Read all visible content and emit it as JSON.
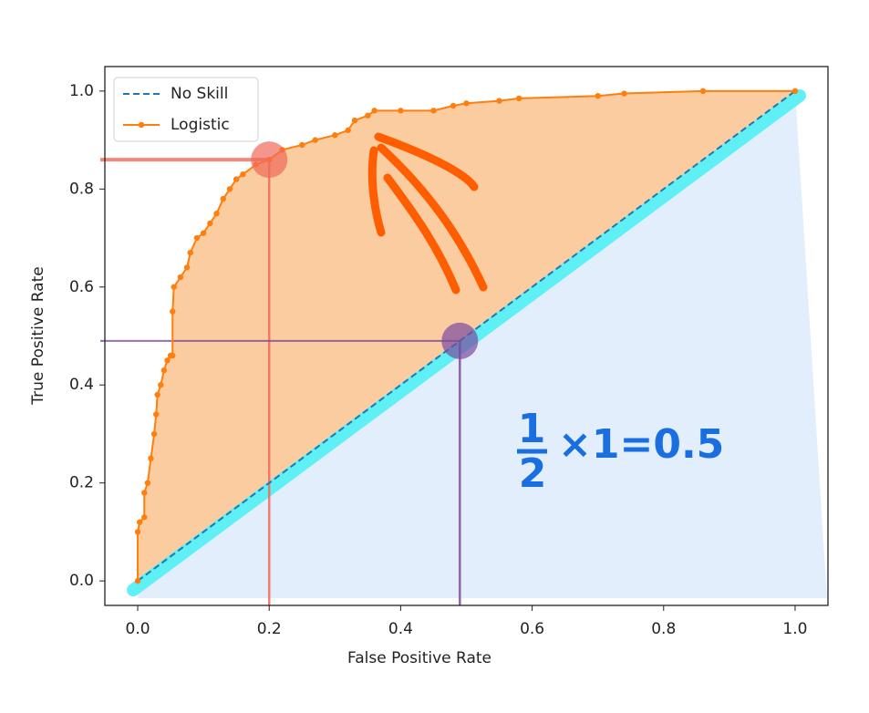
{
  "chart_data": {
    "type": "line",
    "x_label": "False Positive Rate",
    "y_label": "True Positive Rate",
    "xlim": [
      -0.05,
      1.05
    ],
    "ylim": [
      -0.05,
      1.05
    ],
    "xticks": [
      {
        "value": 0,
        "label": "0.0"
      },
      0.2,
      0.4,
      0.6,
      0.8,
      {
        "value": 1,
        "label": "1.0"
      }
    ],
    "yticks": [
      {
        "value": 0,
        "label": "0.0"
      },
      0.2,
      0.4,
      0.6,
      0.8,
      {
        "value": 1,
        "label": "1.0"
      }
    ],
    "legend": "upper left",
    "series": [
      {
        "name": "No Skill",
        "color": "#1f77b4",
        "dashed": true,
        "x": [
          0,
          1
        ],
        "values": [
          0,
          1
        ]
      },
      {
        "name": "Logistic",
        "color": "#ff7f0e",
        "markers": true,
        "x": [
          0,
          0,
          0.003,
          0.01,
          0.01,
          0.015,
          0.02,
          0.025,
          0.028,
          0.03,
          0.035,
          0.04,
          0.045,
          0.05,
          0.053,
          0.053,
          0.055,
          0.065,
          0.075,
          0.08,
          0.09,
          0.1,
          0.11,
          0.12,
          0.13,
          0.14,
          0.15,
          0.16,
          0.18,
          0.2,
          0.22,
          0.25,
          0.27,
          0.3,
          0.32,
          0.33,
          0.35,
          0.36,
          0.4,
          0.45,
          0.48,
          0.5,
          0.55,
          0.58,
          0.7,
          0.74,
          0.86,
          1.0
        ],
        "values": [
          0,
          0.1,
          0.12,
          0.13,
          0.18,
          0.2,
          0.25,
          0.3,
          0.34,
          0.38,
          0.4,
          0.43,
          0.45,
          0.46,
          0.46,
          0.55,
          0.6,
          0.62,
          0.64,
          0.67,
          0.7,
          0.71,
          0.73,
          0.75,
          0.78,
          0.8,
          0.82,
          0.83,
          0.85,
          0.86,
          0.88,
          0.89,
          0.9,
          0.91,
          0.92,
          0.94,
          0.95,
          0.96,
          0.96,
          0.96,
          0.97,
          0.975,
          0.98,
          0.985,
          0.99,
          0.995,
          1.0,
          1.0
        ]
      }
    ],
    "markers": [
      {
        "x": 0.2,
        "y": 0.86,
        "color": "#f06a5a"
      },
      {
        "x": 0.49,
        "y": 0.49,
        "color": "#7b4aa0"
      }
    ],
    "annotation": {
      "numerator": "1",
      "denominator": "2",
      "text": "×1=0.5"
    }
  }
}
